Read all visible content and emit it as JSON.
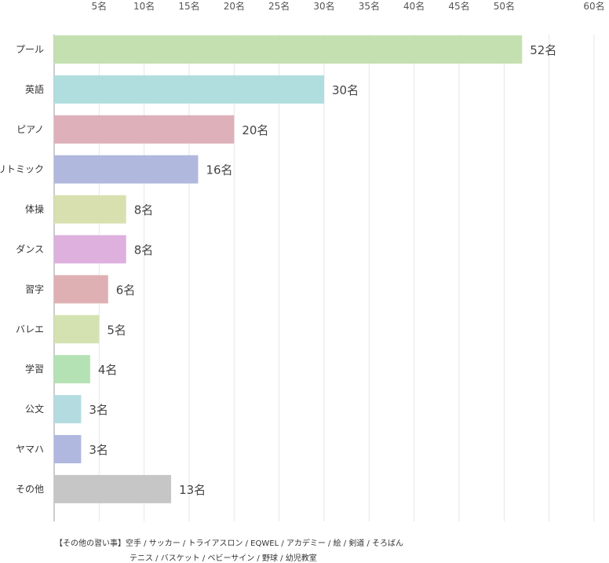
{
  "chart_data": {
    "type": "bar",
    "orientation": "horizontal",
    "categories": [
      "プール",
      "英語",
      "ピアノ",
      "リトミック",
      "体操",
      "ダンス",
      "習字",
      "バレエ",
      "学習",
      "公文",
      "ヤマハ",
      "その他"
    ],
    "values": [
      52,
      30,
      20,
      16,
      8,
      8,
      6,
      5,
      4,
      3,
      3,
      13
    ],
    "value_labels": [
      "52名",
      "30名",
      "20名",
      "16名",
      "8名",
      "8名",
      "6名",
      "5名",
      "4名",
      "3名",
      "3名",
      "13名"
    ],
    "colors": [
      "#c5e0b0",
      "#b0dede",
      "#deb0ba",
      "#b0b8de",
      "#d8e0b0",
      "#deb0de",
      "#deb0b4",
      "#d4e2b2",
      "#b4e2b4",
      "#b4dce0",
      "#b0b8e0",
      "#c6c6c6"
    ],
    "xticks": [
      0,
      5,
      10,
      15,
      20,
      25,
      30,
      35,
      40,
      45,
      50,
      55,
      60
    ],
    "xtick_labels": [
      "",
      "5名",
      "10名",
      "15名",
      "20名",
      "25名",
      "30名",
      "35名",
      "40名",
      "45名",
      "50名",
      "",
      "60名"
    ],
    "xlim": [
      0,
      60
    ],
    "xaxis_position": "top",
    "grid": true,
    "title": "",
    "xlabel": "",
    "ylabel": ""
  },
  "notes": {
    "line1": "【その他の習い事】空手 / サッカー / トライアスロン / EQWEL / アカデミー / 絵 / 剣道 / そろばん",
    "line2": "テニス / バスケット / ベビーサイン / 野球 / 幼児教室"
  }
}
